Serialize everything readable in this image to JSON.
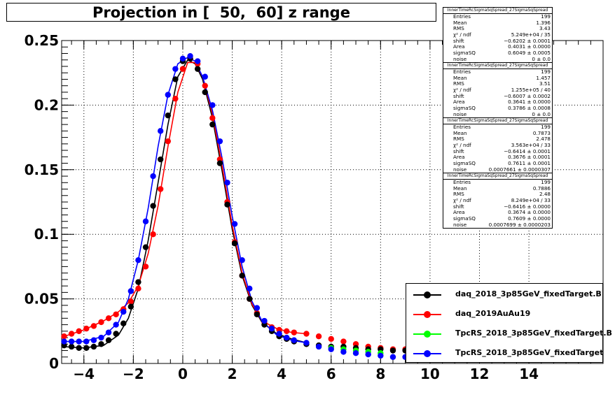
{
  "title": "Projection in [  50,  60] z range",
  "chart_data": {
    "type": "scatter",
    "xlim": [
      -4.9,
      17.0
    ],
    "ylim": [
      0,
      0.25
    ],
    "x_ticks": [
      -4,
      -2,
      0,
      2,
      4,
      6,
      8,
      10,
      12,
      14
    ],
    "y_ticks": [
      0,
      0.05,
      0.1,
      0.15,
      0.2,
      0.25
    ],
    "x_tick_labels": [
      "−4",
      "−2",
      "0",
      "2",
      "4",
      "6",
      "8",
      "10",
      "12",
      "14"
    ],
    "y_tick_labels": [
      "0",
      "0.05",
      "0.1",
      "0.15",
      "0.2",
      "0.25"
    ],
    "grid": true,
    "series": [
      {
        "name": "daq_2018_3p85GeV_fixedTarget.B",
        "color": "#000000",
        "x": [
          -4.8,
          -4.5,
          -4.2,
          -3.9,
          -3.6,
          -3.3,
          -3.0,
          -2.7,
          -2.4,
          -2.1,
          -1.8,
          -1.5,
          -1.2,
          -0.9,
          -0.6,
          -0.3,
          0.0,
          0.3,
          0.6,
          0.9,
          1.2,
          1.5,
          1.8,
          2.1,
          2.4,
          2.7,
          3.0,
          3.3,
          3.6,
          3.9,
          4.2,
          4.5,
          5.0,
          5.5,
          6.0,
          6.5,
          7.0,
          7.5,
          8.0,
          8.5,
          9.0
        ],
        "y": [
          0.014,
          0.013,
          0.012,
          0.012,
          0.013,
          0.015,
          0.018,
          0.023,
          0.031,
          0.044,
          0.063,
          0.09,
          0.122,
          0.158,
          0.192,
          0.22,
          0.234,
          0.236,
          0.228,
          0.21,
          0.185,
          0.155,
          0.123,
          0.093,
          0.068,
          0.05,
          0.038,
          0.03,
          0.025,
          0.021,
          0.019,
          0.017,
          0.015,
          0.014,
          0.013,
          0.013,
          0.012,
          0.011,
          0.011,
          0.01,
          0.01
        ]
      },
      {
        "name": "daq_2019AuAu19",
        "color": "#ff0000",
        "x": [
          -4.8,
          -4.5,
          -4.2,
          -3.9,
          -3.6,
          -3.3,
          -3.0,
          -2.7,
          -2.4,
          -2.1,
          -1.8,
          -1.5,
          -1.2,
          -0.9,
          -0.6,
          -0.3,
          0.0,
          0.3,
          0.6,
          0.9,
          1.2,
          1.5,
          1.8,
          2.1,
          2.4,
          2.7,
          3.0,
          3.3,
          3.6,
          3.9,
          4.2,
          4.5,
          5.0,
          5.5,
          6.0,
          6.5,
          7.0,
          7.5,
          8.0,
          8.5,
          9.0
        ],
        "y": [
          0.021,
          0.023,
          0.025,
          0.027,
          0.029,
          0.032,
          0.035,
          0.038,
          0.042,
          0.048,
          0.058,
          0.075,
          0.1,
          0.135,
          0.172,
          0.205,
          0.228,
          0.236,
          0.232,
          0.215,
          0.19,
          0.158,
          0.125,
          0.094,
          0.068,
          0.05,
          0.039,
          0.032,
          0.028,
          0.026,
          0.025,
          0.024,
          0.023,
          0.021,
          0.019,
          0.017,
          0.015,
          0.013,
          0.012,
          0.011,
          0.011
        ]
      },
      {
        "name": "TpcRS_2018_3p85GeV_fixedTarget.B",
        "color": "#00ff00",
        "x": [
          6.0,
          6.5,
          7.0,
          7.5,
          8.0
        ],
        "y": [
          0.012,
          0.011,
          0.01,
          0.009,
          0.008
        ]
      },
      {
        "name": "TpcRS_2018_3p85GeV_fixedTarget",
        "color": "#0000ff",
        "x": [
          -4.8,
          -4.5,
          -4.2,
          -3.9,
          -3.6,
          -3.3,
          -3.0,
          -2.7,
          -2.4,
          -2.1,
          -1.8,
          -1.5,
          -1.2,
          -0.9,
          -0.6,
          -0.3,
          0.0,
          0.3,
          0.6,
          0.9,
          1.2,
          1.5,
          1.8,
          2.1,
          2.4,
          2.7,
          3.0,
          3.3,
          3.6,
          3.9,
          4.2,
          4.5,
          5.0,
          5.5,
          6.0,
          6.5,
          7.0,
          7.5,
          8.0,
          8.5,
          9.0
        ],
        "y": [
          0.017,
          0.017,
          0.017,
          0.017,
          0.018,
          0.02,
          0.024,
          0.03,
          0.04,
          0.056,
          0.08,
          0.11,
          0.145,
          0.18,
          0.208,
          0.228,
          0.236,
          0.238,
          0.234,
          0.222,
          0.2,
          0.172,
          0.14,
          0.108,
          0.08,
          0.058,
          0.043,
          0.033,
          0.027,
          0.023,
          0.02,
          0.018,
          0.016,
          0.013,
          0.011,
          0.009,
          0.008,
          0.007,
          0.006,
          0.005,
          0.005
        ]
      }
    ],
    "fit_curves": [
      {
        "color": "#000000",
        "x": [
          -4.8,
          -4.0,
          -3.2,
          -2.6,
          -2.2,
          -1.8,
          -1.4,
          -1.0,
          -0.6,
          -0.2,
          0.2,
          0.5,
          0.8,
          1.2,
          1.6,
          2.0,
          2.4,
          2.8,
          3.2,
          3.8,
          4.4,
          5.0
        ],
        "y": [
          0.013,
          0.012,
          0.014,
          0.022,
          0.035,
          0.058,
          0.095,
          0.14,
          0.185,
          0.222,
          0.235,
          0.232,
          0.22,
          0.19,
          0.148,
          0.104,
          0.068,
          0.045,
          0.032,
          0.023,
          0.019,
          0.016
        ]
      },
      {
        "color": "#ff0000",
        "x": [
          -4.8,
          -4.0,
          -3.2,
          -2.6,
          -2.2,
          -1.8,
          -1.4,
          -1.0,
          -0.6,
          -0.2,
          0.2,
          0.5,
          0.8,
          1.2,
          1.6,
          2.0,
          2.4,
          2.8,
          3.2,
          3.8,
          4.4,
          5.0
        ],
        "y": [
          0.021,
          0.026,
          0.033,
          0.04,
          0.047,
          0.06,
          0.085,
          0.122,
          0.168,
          0.21,
          0.233,
          0.233,
          0.222,
          0.193,
          0.152,
          0.107,
          0.07,
          0.046,
          0.033,
          0.027,
          0.024,
          0.023
        ]
      },
      {
        "color": "#0000ff",
        "x": [
          -4.8,
          -4.0,
          -3.2,
          -2.6,
          -2.2,
          -1.8,
          -1.4,
          -1.0,
          -0.6,
          -0.2,
          0.2,
          0.5,
          0.8,
          1.2,
          1.6,
          2.0,
          2.4,
          2.8,
          3.2,
          3.8,
          4.4,
          5.0
        ],
        "y": [
          0.017,
          0.017,
          0.021,
          0.032,
          0.05,
          0.08,
          0.12,
          0.168,
          0.208,
          0.232,
          0.237,
          0.234,
          0.222,
          0.196,
          0.158,
          0.114,
          0.075,
          0.048,
          0.033,
          0.022,
          0.018,
          0.016
        ]
      }
    ],
    "legend_position": "bottom-right"
  },
  "stat_boxes": [
    {
      "title": "InnerTimeRcSigmaSqSpread_27SigmaSqSpread",
      "rows": [
        [
          "Entries",
          "199"
        ],
        [
          "Mean",
          "1.396"
        ],
        [
          "RMS",
          "3.43"
        ],
        [
          "χ² / ndf",
          "5.249e+04 / 35"
        ],
        [
          "shift",
          "−0.6202 ± 0.0001"
        ],
        [
          "Area",
          "0.4031 ± 0.0000"
        ],
        [
          "sigmaSQ",
          "0.6049 ± 0.0005"
        ],
        [
          "noise",
          "0 ± 0.0"
        ]
      ]
    },
    {
      "title": "InnerTimeRcSigmaSqSpread_27SigmaSqSpread",
      "rows": [
        [
          "Entries",
          "199"
        ],
        [
          "Mean",
          "1.457"
        ],
        [
          "RMS",
          "3.51"
        ],
        [
          "χ² / ndf",
          "1.255e+05 / 40"
        ],
        [
          "shift",
          "−0.6007 ± 0.0002"
        ],
        [
          "Area",
          "0.3641 ± 0.0000"
        ],
        [
          "sigmaSQ",
          "0.3786 ± 0.0008"
        ],
        [
          "noise",
          "0 ± 0.0"
        ]
      ]
    },
    {
      "title": "InnerTimeRcSigmaSqSpread_27SigmaSqSpread",
      "rows": [
        [
          "Entries",
          "199"
        ],
        [
          "Mean",
          "0.7873"
        ],
        [
          "RMS",
          "2.478"
        ],
        [
          "χ² / ndf",
          "3.563e+04 / 33"
        ],
        [
          "shift",
          "−0.6414 ± 0.0001"
        ],
        [
          "Area",
          "0.3676 ± 0.0001"
        ],
        [
          "sigmaSQ",
          "0.7611 ± 0.0001"
        ],
        [
          "noise",
          "0.0007661 ± 0.0000307"
        ]
      ]
    },
    {
      "title": "InnerTimeRcSigmaSqSpread_27SigmaSqSpread",
      "rows": [
        [
          "Entries",
          "199"
        ],
        [
          "Mean",
          "0.7886"
        ],
        [
          "RMS",
          "2.48"
        ],
        [
          "χ² / ndf",
          "8.249e+04 / 33"
        ],
        [
          "shift",
          "−0.6416 ± 0.0000"
        ],
        [
          "Area",
          "0.3674 ± 0.0000"
        ],
        [
          "sigmaSQ",
          "0.7609 ± 0.0000"
        ],
        [
          "noise",
          "0.0007699 ± 0.0000203"
        ]
      ]
    }
  ],
  "legend": {
    "entries": [
      {
        "label": "daq_2018_3p85GeV_fixedTarget.B",
        "color": "#000000"
      },
      {
        "label": "daq_2019AuAu19",
        "color": "#ff0000"
      },
      {
        "label": "TpcRS_2018_3p85GeV_fixedTarget.B",
        "color": "#00ff00"
      },
      {
        "label": "TpcRS_2018_3p85GeV_fixedTarget",
        "color": "#0000ff"
      }
    ]
  }
}
